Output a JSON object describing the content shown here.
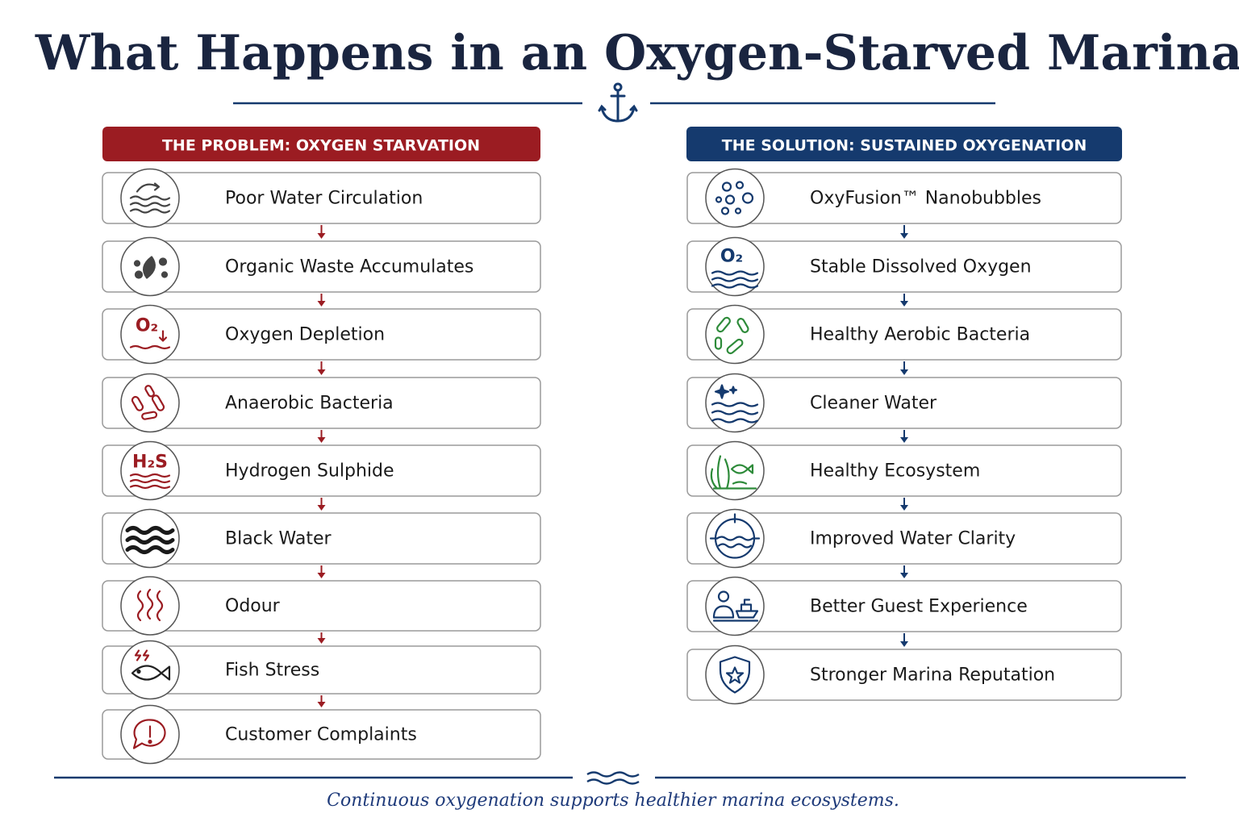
{
  "title": "What Happens in an Oxygen-Starved Marina",
  "problem": {
    "header": "THE PROBLEM: OXYGEN STARVATION",
    "steps": [
      {
        "label": "Poor Water Circulation"
      },
      {
        "label": "Organic Waste Accumulates"
      },
      {
        "label": "Oxygen Depletion",
        "icon_text": "O₂"
      },
      {
        "label": "Anaerobic Bacteria"
      },
      {
        "label": "Hydrogen Sulphide",
        "icon_text": "H₂S"
      },
      {
        "label": "Black Water"
      },
      {
        "label": "Odour"
      },
      {
        "label": "Fish Stress"
      },
      {
        "label": "Customer Complaints"
      }
    ]
  },
  "solution": {
    "header": "THE SOLUTION: SUSTAINED OXYGENATION",
    "steps": [
      {
        "label": "OxyFusion™ Nanobubbles"
      },
      {
        "label": "Stable Dissolved Oxygen",
        "icon_text": "O₂"
      },
      {
        "label": "Healthy Aerobic Bacteria"
      },
      {
        "label": "Cleaner Water"
      },
      {
        "label": "Healthy Ecosystem"
      },
      {
        "label": "Improved Water Clarity"
      },
      {
        "label": "Better Guest Experience"
      },
      {
        "label": "Stronger Marina Reputation"
      }
    ]
  },
  "footer": "Continuous oxygenation supports healthier marina ecosystems."
}
